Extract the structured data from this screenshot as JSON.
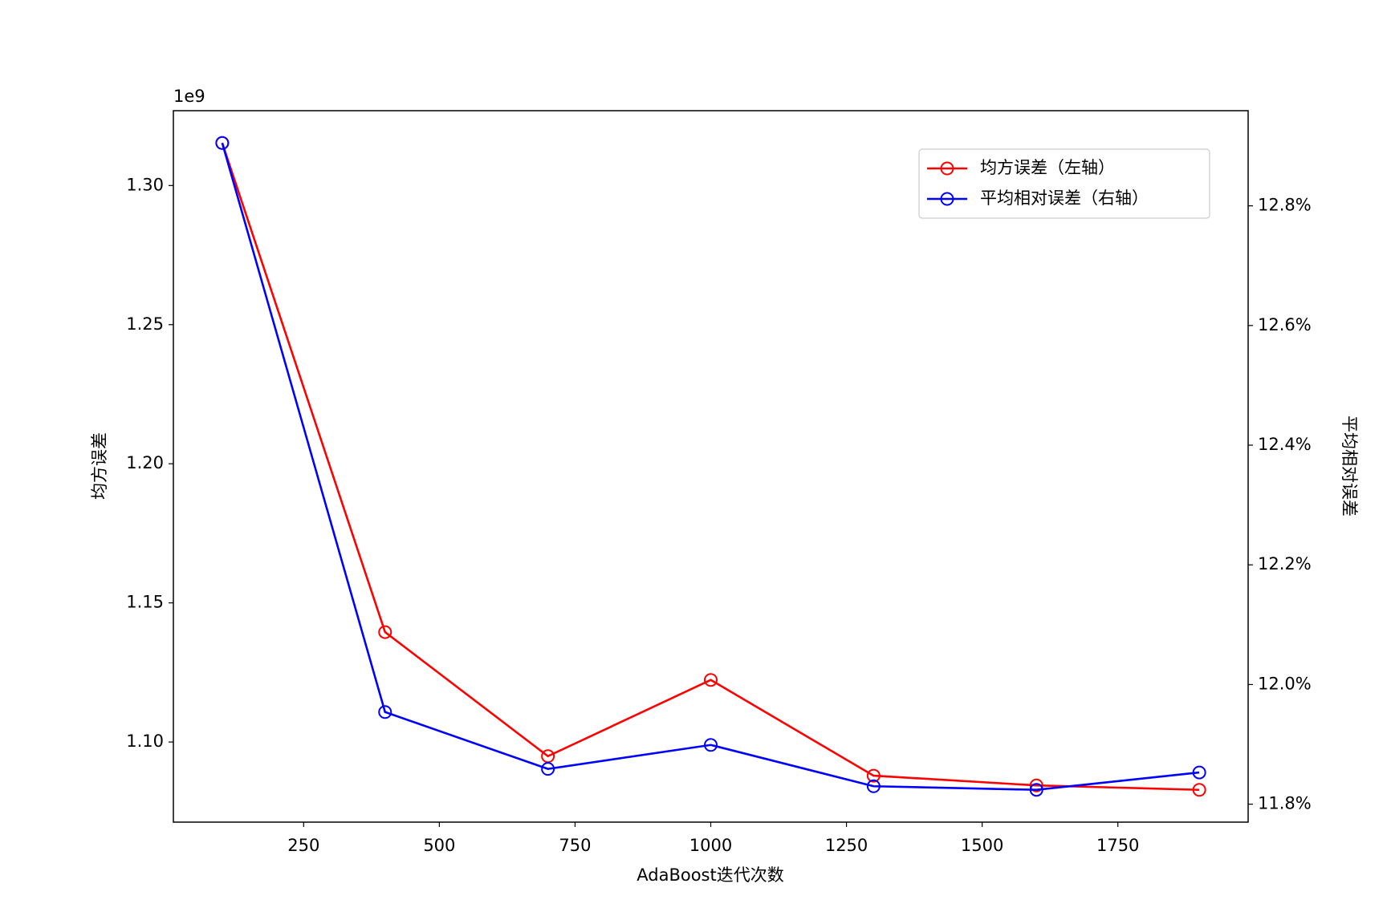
{
  "chart_data": {
    "type": "line",
    "x": [
      100,
      400,
      700,
      1000,
      1300,
      1600,
      1900
    ],
    "xlabel": "AdaBoost迭代次数",
    "ylabel": "均方误差",
    "y2label": "平均相对误差",
    "y_offset_label": "1e9",
    "xlim": [
      10,
      1990
    ],
    "xticks": [
      250,
      500,
      750,
      1000,
      1250,
      1500,
      1750
    ],
    "ylim": [
      1.0712,
      1.3269
    ],
    "yticks": [
      {
        "value": 1.1,
        "label": "1.10"
      },
      1.15,
      {
        "value": 1.2,
        "label": "1.20"
      },
      1.25,
      {
        "value": 1.3,
        "label": "1.30"
      }
    ],
    "y2lim": [
      11.77,
      12.959
    ],
    "y2ticks": [
      {
        "value": 11.8,
        "label": "11.8%"
      },
      {
        "value": 12.0,
        "label": "12.0%"
      },
      {
        "value": 12.2,
        "label": "12.2%"
      },
      {
        "value": 12.4,
        "label": "12.4%"
      },
      {
        "value": 12.6,
        "label": "12.6%"
      },
      {
        "value": 12.8,
        "label": "12.8%"
      }
    ],
    "legend": "upper right",
    "series": [
      {
        "name": "均方误差（左轴）",
        "color": "#ff0000",
        "values": [
          1.3153,
          1.1395,
          1.0949,
          1.1223,
          1.0879,
          1.0844,
          1.0828
        ]
      },
      {
        "name": "平均相对误差（右轴）",
        "color": "#0000ff",
        "axis": "y2",
        "values": [
          12.905,
          11.954,
          11.859,
          11.899,
          11.83,
          11.824,
          11.853
        ]
      }
    ]
  }
}
